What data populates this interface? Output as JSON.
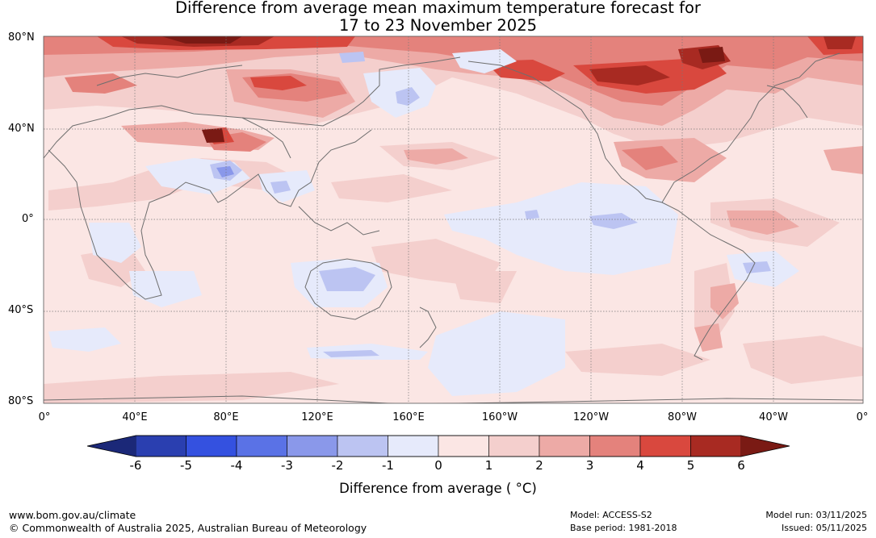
{
  "title": {
    "line1": "Difference from average mean maximum temperature forecast for",
    "line2": "17 to 23 November 2025"
  },
  "map": {
    "lat_labels": [
      "80°N",
      "40°N",
      "0°",
      "40°S",
      "80°S"
    ],
    "lon_labels": [
      "0°",
      "40°E",
      "80°E",
      "120°E",
      "160°E",
      "160°W",
      "120°W",
      "80°W",
      "40°W",
      "0°"
    ],
    "colors": {
      "grid": "#777777",
      "coast": "#6e6e6e",
      "frame": "#555555"
    }
  },
  "colorbar": {
    "ticks": [
      "-6",
      "-5",
      "-4",
      "-3",
      "-2",
      "-1",
      "0",
      "1",
      "2",
      "3",
      "4",
      "5",
      "6"
    ],
    "label": "Difference from average ( °C)",
    "colors": {
      "low_ext": "#1b2878",
      "bins": [
        "#2a3fb0",
        "#3451e0",
        "#5a72e6",
        "#8a98ea",
        "#bcc4f2",
        "#e6eafb",
        "#fbe6e4",
        "#f4cfcd",
        "#edaaa6",
        "#e4827c",
        "#d9483e",
        "#a82a22"
      ],
      "high_ext": "#7a1a14"
    }
  },
  "footer": {
    "website": "www.bom.gov.au/climate",
    "copyright": "© Commonwealth of Australia 2025, Australian Bureau of Meteorology",
    "model": "Model: ACCESS-S2",
    "base_period": "Base period: 1981-2018",
    "model_run": "Model run: 03/11/2025",
    "issued": "Issued: 05/11/2025"
  }
}
